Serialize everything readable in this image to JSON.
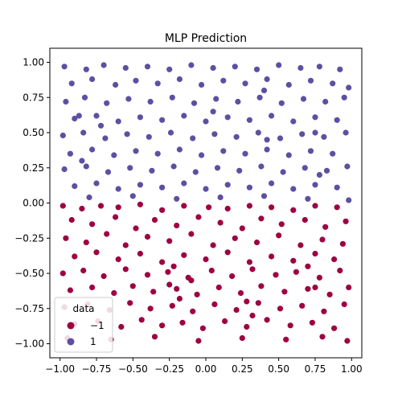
{
  "chart_data": {
    "type": "scatter",
    "title": "MLP Prediction",
    "xlabel": "",
    "ylabel": "",
    "xlim": [
      -1.07,
      1.07
    ],
    "ylim": [
      -1.1,
      1.1
    ],
    "xticks": [
      -1.0,
      -0.75,
      -0.5,
      -0.25,
      0.0,
      0.25,
      0.5,
      0.75,
      1.0
    ],
    "xtick_labels": [
      "−1.00",
      "−0.75",
      "−0.50",
      "−0.25",
      "0.00",
      "0.25",
      "0.50",
      "0.75",
      "1.00"
    ],
    "yticks": [
      -1.0,
      -0.75,
      -0.5,
      -0.25,
      0.0,
      0.25,
      0.5,
      0.75,
      1.0
    ],
    "ytick_labels": [
      "−1.00",
      "−0.75",
      "−0.50",
      "−0.25",
      "0.00",
      "0.25",
      "0.50",
      "0.75",
      "1.00"
    ],
    "grid": false,
    "legend": {
      "title": "data",
      "placement": "lower-left",
      "entries": [
        {
          "label": "−1",
          "color": "#9e0142"
        },
        {
          "label": "1",
          "color": "#5e4fa2"
        }
      ]
    },
    "series": [
      {
        "name": "−1",
        "color": "#9e0142",
        "points": [
          [
            -0.98,
            -0.02
          ],
          [
            -0.85,
            -0.04
          ],
          [
            -0.72,
            -0.02
          ],
          [
            -0.6,
            -0.03
          ],
          [
            -0.45,
            -0.01
          ],
          [
            -0.3,
            -0.05
          ],
          [
            -0.15,
            -0.02
          ],
          [
            0.02,
            -0.03
          ],
          [
            0.15,
            -0.04
          ],
          [
            0.3,
            -0.02
          ],
          [
            0.45,
            -0.03
          ],
          [
            0.6,
            -0.05
          ],
          [
            0.75,
            -0.02
          ],
          [
            0.9,
            -0.03
          ],
          [
            -0.92,
            -0.12
          ],
          [
            -0.78,
            -0.15
          ],
          [
            -0.62,
            -0.1
          ],
          [
            -0.48,
            -0.18
          ],
          [
            -0.35,
            -0.12
          ],
          [
            -0.2,
            -0.16
          ],
          [
            -0.05,
            -0.1
          ],
          [
            0.1,
            -0.14
          ],
          [
            0.25,
            -0.18
          ],
          [
            0.38,
            -0.11
          ],
          [
            0.52,
            -0.15
          ],
          [
            0.68,
            -0.12
          ],
          [
            0.82,
            -0.17
          ],
          [
            0.96,
            -0.13
          ],
          [
            -0.96,
            -0.25
          ],
          [
            -0.82,
            -0.28
          ],
          [
            -0.68,
            -0.22
          ],
          [
            -0.55,
            -0.3
          ],
          [
            -0.4,
            -0.24
          ],
          [
            -0.25,
            -0.27
          ],
          [
            -0.1,
            -0.22
          ],
          [
            0.05,
            -0.3
          ],
          [
            0.2,
            -0.25
          ],
          [
            0.35,
            -0.28
          ],
          [
            0.5,
            -0.23
          ],
          [
            0.65,
            -0.3
          ],
          [
            0.8,
            -0.26
          ],
          [
            0.94,
            -0.29
          ],
          [
            -0.9,
            -0.38
          ],
          [
            -0.75,
            -0.35
          ],
          [
            -0.6,
            -0.4
          ],
          [
            -0.45,
            -0.36
          ],
          [
            -0.3,
            -0.42
          ],
          [
            -0.15,
            -0.37
          ],
          [
            0.0,
            -0.4
          ],
          [
            0.15,
            -0.35
          ],
          [
            0.3,
            -0.42
          ],
          [
            0.45,
            -0.38
          ],
          [
            0.6,
            -0.41
          ],
          [
            0.75,
            -0.36
          ],
          [
            0.88,
            -0.4
          ],
          [
            -0.98,
            -0.5
          ],
          [
            -0.84,
            -0.48
          ],
          [
            -0.7,
            -0.52
          ],
          [
            -0.55,
            -0.47
          ],
          [
            -0.4,
            -0.51
          ],
          [
            -0.26,
            -0.49
          ],
          [
            -0.12,
            -0.53
          ],
          [
            0.04,
            -0.48
          ],
          [
            0.18,
            -0.52
          ],
          [
            0.32,
            -0.47
          ],
          [
            0.48,
            -0.51
          ],
          [
            0.62,
            -0.49
          ],
          [
            0.78,
            -0.53
          ],
          [
            0.92,
            -0.48
          ],
          [
            -0.93,
            -0.62
          ],
          [
            -0.78,
            -0.6
          ],
          [
            -0.63,
            -0.64
          ],
          [
            -0.5,
            -0.59
          ],
          [
            -0.36,
            -0.63
          ],
          [
            -0.2,
            -0.61
          ],
          [
            -0.06,
            -0.65
          ],
          [
            0.09,
            -0.6
          ],
          [
            0.24,
            -0.64
          ],
          [
            0.38,
            -0.59
          ],
          [
            0.54,
            -0.63
          ],
          [
            0.7,
            -0.61
          ],
          [
            0.85,
            -0.65
          ],
          [
            0.98,
            -0.6
          ],
          [
            -0.97,
            -0.74
          ],
          [
            -0.81,
            -0.72
          ],
          [
            -0.66,
            -0.76
          ],
          [
            -0.52,
            -0.71
          ],
          [
            -0.38,
            -0.75
          ],
          [
            -0.23,
            -0.73
          ],
          [
            -0.09,
            -0.77
          ],
          [
            0.06,
            -0.72
          ],
          [
            0.21,
            -0.76
          ],
          [
            0.36,
            -0.71
          ],
          [
            0.51,
            -0.75
          ],
          [
            0.66,
            -0.73
          ],
          [
            0.81,
            -0.77
          ],
          [
            0.95,
            -0.72
          ],
          [
            -0.9,
            -0.86
          ],
          [
            -0.74,
            -0.84
          ],
          [
            -0.58,
            -0.88
          ],
          [
            -0.44,
            -0.83
          ],
          [
            -0.3,
            -0.87
          ],
          [
            -0.16,
            -0.85
          ],
          [
            -0.02,
            -0.89
          ],
          [
            0.13,
            -0.84
          ],
          [
            0.28,
            -0.88
          ],
          [
            0.42,
            -0.83
          ],
          [
            0.58,
            -0.87
          ],
          [
            0.73,
            -0.85
          ],
          [
            0.88,
            -0.89
          ],
          [
            -0.95,
            -0.96
          ],
          [
            -0.65,
            -0.97
          ],
          [
            -0.35,
            -0.95
          ],
          [
            -0.05,
            -0.98
          ],
          [
            0.25,
            -0.96
          ],
          [
            0.55,
            -0.97
          ],
          [
            0.8,
            -0.95
          ],
          [
            0.97,
            -0.98
          ],
          [
            -0.25,
            -0.58
          ],
          [
            -0.18,
            -0.68
          ],
          [
            -0.1,
            -0.55
          ],
          [
            -0.22,
            -0.45
          ],
          [
            0.28,
            -0.7
          ],
          [
            0.32,
            -0.8
          ],
          [
            0.7,
            -0.45
          ],
          [
            0.75,
            -0.6
          ]
        ]
      },
      {
        "name": "1",
        "color": "#5e4fa2",
        "points": [
          [
            -0.97,
            0.97
          ],
          [
            -0.82,
            0.95
          ],
          [
            -0.7,
            0.98
          ],
          [
            -0.55,
            0.96
          ],
          [
            -0.4,
            0.97
          ],
          [
            -0.25,
            0.95
          ],
          [
            -0.1,
            0.98
          ],
          [
            0.05,
            0.96
          ],
          [
            0.2,
            0.97
          ],
          [
            0.35,
            0.95
          ],
          [
            0.5,
            0.98
          ],
          [
            0.65,
            0.96
          ],
          [
            0.78,
            0.97
          ],
          [
            0.92,
            0.95
          ],
          [
            -0.92,
            0.85
          ],
          [
            -0.78,
            0.88
          ],
          [
            -0.62,
            0.84
          ],
          [
            -0.48,
            0.87
          ],
          [
            -0.33,
            0.85
          ],
          [
            -0.18,
            0.88
          ],
          [
            -0.03,
            0.84
          ],
          [
            0.12,
            0.87
          ],
          [
            0.27,
            0.85
          ],
          [
            0.42,
            0.88
          ],
          [
            0.57,
            0.84
          ],
          [
            0.72,
            0.87
          ],
          [
            0.87,
            0.85
          ],
          [
            0.98,
            0.82
          ],
          [
            -0.96,
            0.72
          ],
          [
            -0.83,
            0.75
          ],
          [
            -0.68,
            0.71
          ],
          [
            -0.53,
            0.74
          ],
          [
            -0.38,
            0.72
          ],
          [
            -0.23,
            0.75
          ],
          [
            -0.08,
            0.71
          ],
          [
            0.07,
            0.74
          ],
          [
            0.22,
            0.72
          ],
          [
            0.37,
            0.75
          ],
          [
            0.52,
            0.71
          ],
          [
            0.67,
            0.74
          ],
          [
            0.82,
            0.72
          ],
          [
            0.95,
            0.75
          ],
          [
            -0.9,
            0.6
          ],
          [
            -0.75,
            0.62
          ],
          [
            -0.6,
            0.58
          ],
          [
            -0.45,
            0.61
          ],
          [
            -0.3,
            0.59
          ],
          [
            -0.15,
            0.62
          ],
          [
            0.0,
            0.58
          ],
          [
            0.15,
            0.61
          ],
          [
            0.3,
            0.59
          ],
          [
            0.45,
            0.62
          ],
          [
            0.6,
            0.58
          ],
          [
            0.75,
            0.61
          ],
          [
            0.9,
            0.59
          ],
          [
            -0.98,
            0.48
          ],
          [
            -0.84,
            0.5
          ],
          [
            -0.69,
            0.46
          ],
          [
            -0.54,
            0.49
          ],
          [
            -0.39,
            0.47
          ],
          [
            -0.24,
            0.5
          ],
          [
            -0.09,
            0.46
          ],
          [
            0.06,
            0.49
          ],
          [
            0.21,
            0.47
          ],
          [
            0.36,
            0.5
          ],
          [
            0.51,
            0.46
          ],
          [
            0.66,
            0.49
          ],
          [
            0.81,
            0.47
          ],
          [
            0.96,
            0.5
          ],
          [
            -0.93,
            0.35
          ],
          [
            -0.78,
            0.38
          ],
          [
            -0.63,
            0.34
          ],
          [
            -0.48,
            0.37
          ],
          [
            -0.33,
            0.35
          ],
          [
            -0.18,
            0.38
          ],
          [
            -0.03,
            0.34
          ],
          [
            0.12,
            0.37
          ],
          [
            0.27,
            0.35
          ],
          [
            0.42,
            0.38
          ],
          [
            0.57,
            0.34
          ],
          [
            0.72,
            0.37
          ],
          [
            0.87,
            0.35
          ],
          [
            -0.97,
            0.24
          ],
          [
            -0.82,
            0.26
          ],
          [
            -0.67,
            0.22
          ],
          [
            -0.52,
            0.25
          ],
          [
            -0.37,
            0.23
          ],
          [
            -0.22,
            0.26
          ],
          [
            -0.07,
            0.22
          ],
          [
            0.08,
            0.25
          ],
          [
            0.23,
            0.23
          ],
          [
            0.38,
            0.26
          ],
          [
            0.53,
            0.22
          ],
          [
            0.68,
            0.25
          ],
          [
            0.83,
            0.23
          ],
          [
            0.97,
            0.26
          ],
          [
            -0.9,
            0.12
          ],
          [
            -0.75,
            0.14
          ],
          [
            -0.6,
            0.1
          ],
          [
            -0.45,
            0.13
          ],
          [
            -0.3,
            0.11
          ],
          [
            -0.15,
            0.14
          ],
          [
            0.0,
            0.1
          ],
          [
            0.15,
            0.13
          ],
          [
            0.3,
            0.11
          ],
          [
            0.45,
            0.14
          ],
          [
            0.6,
            0.1
          ],
          [
            0.75,
            0.13
          ],
          [
            0.9,
            0.11
          ],
          [
            -0.8,
            0.04
          ],
          [
            -0.5,
            0.05
          ],
          [
            -0.2,
            0.03
          ],
          [
            0.1,
            0.04
          ],
          [
            0.4,
            0.05
          ],
          [
            0.7,
            0.03
          ],
          [
            0.98,
            0.02
          ],
          [
            -0.87,
            0.62
          ],
          [
            -0.85,
            0.3
          ],
          [
            -0.72,
            0.55
          ],
          [
            0.05,
            0.65
          ],
          [
            0.4,
            0.8
          ],
          [
            0.42,
            0.45
          ],
          [
            0.75,
            0.5
          ],
          [
            0.78,
            0.2
          ]
        ]
      }
    ]
  }
}
